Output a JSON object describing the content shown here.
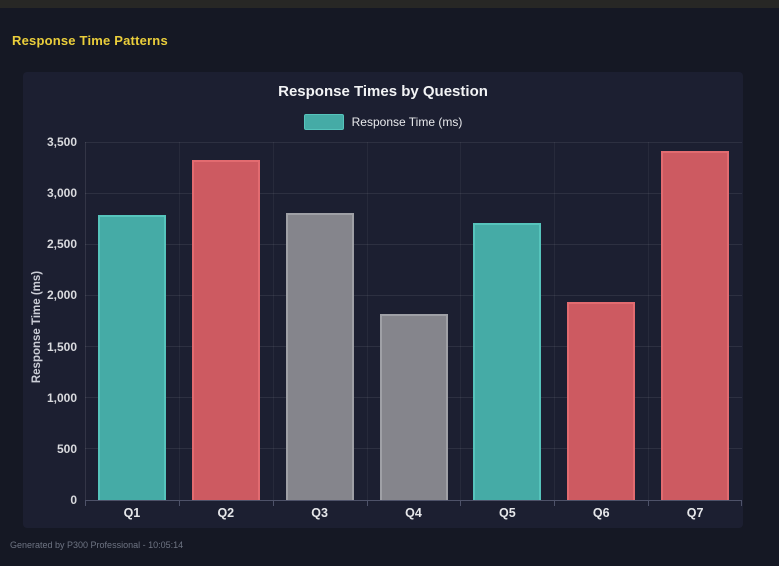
{
  "window": {
    "top_bar_color": "#272725"
  },
  "page": {
    "title": "Response Time Patterns",
    "title_color": "#eace3b",
    "background": "#151824",
    "footer": "Generated by P300 Professional - 10:05:14"
  },
  "panel": {
    "background": "#1c1f31"
  },
  "chart_data": {
    "type": "bar",
    "title": "Response Times by Question",
    "legend": [
      {
        "label": "Response Time (ms)",
        "color": "#45aba6",
        "border_color": "#56c4bc"
      }
    ],
    "legend_position": "top",
    "xlabel": "",
    "ylabel": "Response Time (ms)",
    "categories": [
      "Q1",
      "Q2",
      "Q3",
      "Q4",
      "Q5",
      "Q6",
      "Q7"
    ],
    "values": [
      2790,
      3320,
      2810,
      1820,
      2710,
      1940,
      3410
    ],
    "bar_colors": [
      "#45aba6",
      "#cd5a61",
      "#85858c",
      "#85858c",
      "#45aba6",
      "#cd5a61",
      "#cd5a61"
    ],
    "bar_border_colors": [
      "#56c4bc",
      "#e26b70",
      "#9fa0a6",
      "#9fa0a6",
      "#56c4bc",
      "#e26b70",
      "#e26b70"
    ],
    "ylim": [
      0,
      3500
    ],
    "ytick_step": 500,
    "ytick_labels": [
      "0",
      "500",
      "1,000",
      "1,500",
      "2,000",
      "2,500",
      "3,000",
      "3,500"
    ],
    "grid": true
  }
}
